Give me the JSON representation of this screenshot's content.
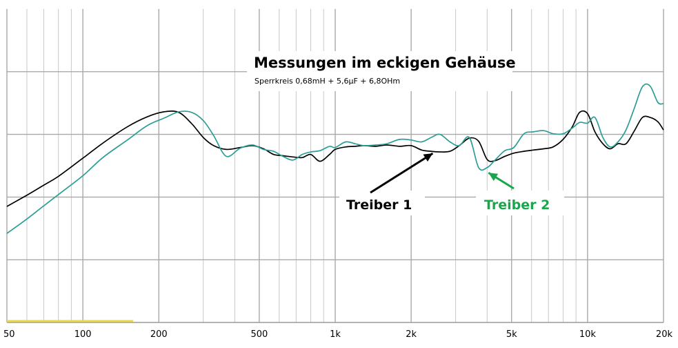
{
  "chart_data": {
    "type": "line",
    "title": "Messungen im eckigen Gehäuse",
    "subtitle": "Sperrkreis 0,68mH + 5,6µF + 6,8OHm",
    "xscale": "log",
    "xlim": [
      50,
      20000
    ],
    "ylim": [
      0,
      5
    ],
    "grid": true,
    "x_ticks": [
      {
        "value": 50,
        "label": "50"
      },
      {
        "value": 100,
        "label": "100"
      },
      {
        "value": 200,
        "label": "200"
      },
      {
        "value": 500,
        "label": "500"
      },
      {
        "value": 1000,
        "label": "1k"
      },
      {
        "value": 2000,
        "label": "2k"
      },
      {
        "value": 5000,
        "label": "5k"
      },
      {
        "value": 10000,
        "label": "10k"
      },
      {
        "value": 20000,
        "label": "20k"
      }
    ],
    "minor_x_gridlines": [
      60,
      70,
      80,
      90,
      300,
      400,
      600,
      700,
      800,
      900,
      3000,
      4000,
      6000,
      7000,
      8000,
      9000
    ],
    "y_gridlines": [
      1,
      2,
      3,
      4
    ],
    "annotations": [
      {
        "text": "Treiber 1",
        "color": "#000000",
        "points_to": {
          "x": 2450,
          "y": 2.73
        }
      },
      {
        "text": "Treiber 2",
        "color": "#1aa64a",
        "points_to": {
          "x": 4000,
          "y": 2.42
        }
      }
    ],
    "series": [
      {
        "color": "#000000",
        "x": [
          50,
          60,
          70,
          80,
          100,
          120,
          150,
          180,
          210,
          240,
          270,
          300,
          330,
          370,
          420,
          470,
          520,
          570,
          620,
          680,
          740,
          800,
          870,
          950,
          1000,
          1100,
          1200,
          1300,
          1450,
          1600,
          1800,
          2000,
          2200,
          2400,
          2600,
          2850,
          3100,
          3400,
          3700,
          4000,
          4300,
          4700,
          5100,
          5600,
          6100,
          6700,
          7300,
          8000,
          8700,
          9300,
          10000,
          10700,
          11500,
          12300,
          13200,
          14200,
          15300,
          16500,
          17700,
          19000,
          20000
        ],
        "y": [
          1.85,
          2.03,
          2.19,
          2.33,
          2.62,
          2.86,
          3.12,
          3.28,
          3.36,
          3.35,
          3.17,
          2.95,
          2.82,
          2.76,
          2.79,
          2.82,
          2.77,
          2.68,
          2.66,
          2.64,
          2.63,
          2.68,
          2.57,
          2.68,
          2.76,
          2.8,
          2.81,
          2.82,
          2.81,
          2.83,
          2.81,
          2.82,
          2.75,
          2.73,
          2.72,
          2.73,
          2.82,
          2.94,
          2.89,
          2.6,
          2.58,
          2.65,
          2.7,
          2.73,
          2.75,
          2.77,
          2.8,
          2.92,
          3.12,
          3.35,
          3.33,
          3.04,
          2.85,
          2.77,
          2.85,
          2.85,
          3.05,
          3.27,
          3.27,
          3.2,
          3.07
        ]
      },
      {
        "color": "#2a9d96",
        "x": [
          50,
          60,
          70,
          80,
          100,
          120,
          150,
          180,
          210,
          240,
          270,
          300,
          330,
          370,
          420,
          470,
          520,
          570,
          620,
          680,
          740,
          800,
          870,
          950,
          1000,
          1100,
          1200,
          1300,
          1450,
          1600,
          1800,
          2000,
          2200,
          2400,
          2600,
          2850,
          3100,
          3400,
          3700,
          4000,
          4300,
          4700,
          5100,
          5600,
          6100,
          6700,
          7300,
          8000,
          8700,
          9300,
          10000,
          10700,
          11500,
          12300,
          13200,
          14200,
          15300,
          16500,
          17700,
          19000,
          20000
        ],
        "y": [
          1.42,
          1.65,
          1.86,
          2.04,
          2.34,
          2.63,
          2.91,
          3.14,
          3.26,
          3.36,
          3.35,
          3.22,
          2.98,
          2.65,
          2.78,
          2.83,
          2.76,
          2.73,
          2.65,
          2.59,
          2.68,
          2.72,
          2.74,
          2.81,
          2.79,
          2.88,
          2.85,
          2.82,
          2.83,
          2.85,
          2.92,
          2.91,
          2.88,
          2.95,
          3.0,
          2.88,
          2.82,
          2.95,
          2.47,
          2.47,
          2.59,
          2.74,
          2.79,
          3.01,
          3.04,
          3.06,
          3.01,
          3.01,
          3.1,
          3.19,
          3.18,
          3.27,
          2.95,
          2.8,
          2.88,
          3.07,
          3.41,
          3.76,
          3.77,
          3.51,
          3.49
        ]
      }
    ]
  }
}
